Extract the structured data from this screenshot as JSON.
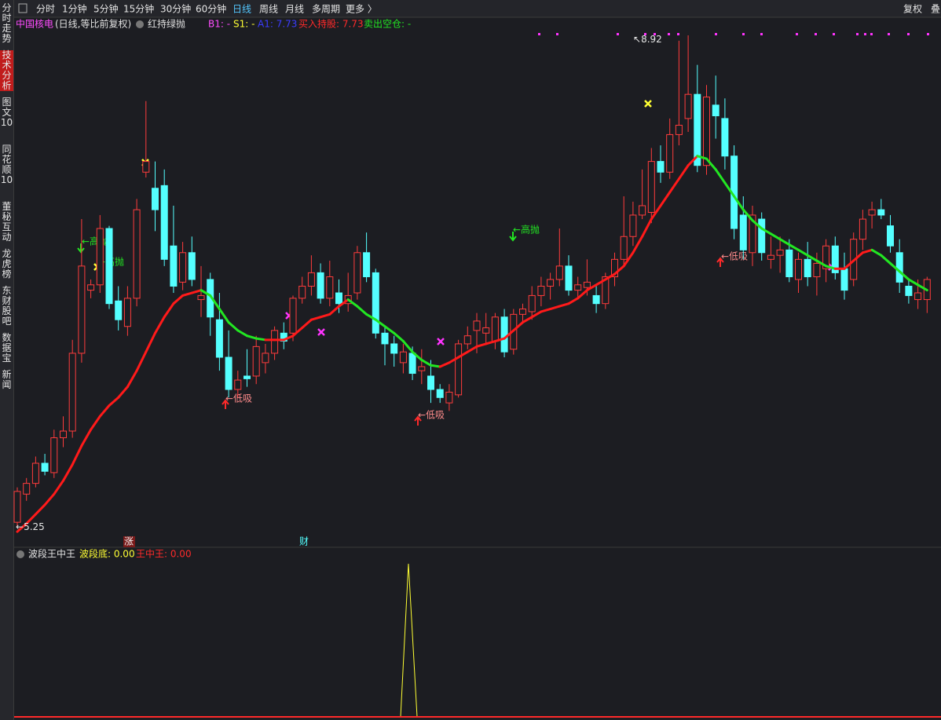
{
  "toolbar": {
    "periods": [
      "分时",
      "1分钟",
      "5分钟",
      "15分钟",
      "30分钟",
      "60分钟",
      "日线",
      "周线",
      "月线",
      "多周期",
      "更多 〉"
    ],
    "right": [
      "复权",
      "叠"
    ]
  },
  "sidebar": [
    "分时走势",
    "技术分析",
    "图文10",
    "同花顺10",
    "董秘互动",
    "龙虎榜",
    "东财股吧",
    "数据宝",
    "新闻"
  ],
  "chart_data": {
    "type": "candlestick",
    "title": "中国核电",
    "subtitle": "(日线,等比前复权)",
    "indicator": "红持绿抛",
    "legend": [
      "B1: -",
      "S1: -",
      "A1: 7.73",
      "买入持股: 7.73",
      "卖出空仓: -"
    ],
    "up_color": "#ff3c3c",
    "down_color": "#54ffff",
    "ma_up_color": "#ff1a1a",
    "ma_down_color": "#22e622",
    "max_label": 8.92,
    "min_label": 5.25,
    "signals": [
      "←高抛",
      "←高抛",
      "←低吸",
      "←低吸",
      "←高抛",
      "←低吸"
    ],
    "tags": [
      "涨",
      "财"
    ],
    "candles": [
      [
        5.29,
        5.55,
        5.25,
        5.52
      ],
      [
        5.5,
        5.62,
        5.45,
        5.58
      ],
      [
        5.58,
        5.78,
        5.55,
        5.73
      ],
      [
        5.73,
        5.8,
        5.64,
        5.67
      ],
      [
        5.66,
        5.98,
        5.62,
        5.92
      ],
      [
        5.92,
        6.08,
        5.85,
        5.97
      ],
      [
        5.97,
        6.65,
        5.92,
        6.55
      ],
      [
        6.55,
        7.55,
        6.48,
        7.2
      ],
      [
        7.02,
        7.1,
        6.96,
        7.06
      ],
      [
        7.06,
        7.58,
        7.0,
        7.48
      ],
      [
        7.48,
        7.5,
        6.88,
        6.92
      ],
      [
        6.94,
        7.05,
        6.72,
        6.8
      ],
      [
        6.75,
        7.05,
        6.68,
        6.96
      ],
      [
        6.96,
        7.7,
        6.9,
        7.62
      ],
      [
        7.9,
        8.43,
        7.86,
        7.98
      ],
      [
        7.78,
        7.98,
        7.46,
        7.62
      ],
      [
        7.8,
        7.92,
        7.2,
        7.25
      ],
      [
        7.35,
        7.65,
        7.0,
        7.05
      ],
      [
        7.08,
        7.38,
        7.02,
        7.3
      ],
      [
        7.3,
        7.42,
        7.05,
        7.1
      ],
      [
        6.95,
        7.2,
        6.82,
        6.98
      ],
      [
        7.1,
        7.15,
        6.68,
        6.82
      ],
      [
        6.8,
        7.0,
        6.42,
        6.52
      ],
      [
        6.52,
        6.72,
        6.22,
        6.28
      ],
      [
        6.28,
        6.42,
        6.22,
        6.35
      ],
      [
        6.38,
        6.58,
        6.3,
        6.36
      ],
      [
        6.38,
        6.68,
        6.32,
        6.6
      ],
      [
        6.48,
        6.62,
        6.4,
        6.55
      ],
      [
        6.55,
        6.75,
        6.5,
        6.72
      ],
      [
        6.7,
        6.78,
        6.58,
        6.64
      ],
      [
        6.7,
        6.98,
        6.64,
        6.96
      ],
      [
        6.96,
        7.12,
        6.92,
        7.05
      ],
      [
        7.05,
        7.28,
        6.98,
        7.15
      ],
      [
        7.15,
        7.22,
        6.92,
        6.96
      ],
      [
        6.96,
        7.24,
        6.9,
        7.12
      ],
      [
        7.0,
        7.1,
        6.85,
        6.92
      ],
      [
        6.92,
        7.15,
        6.86,
        6.98
      ],
      [
        7.0,
        7.35,
        6.95,
        7.3
      ],
      [
        7.3,
        7.45,
        7.08,
        7.12
      ],
      [
        7.15,
        7.18,
        6.66,
        6.7
      ],
      [
        6.7,
        6.74,
        6.46,
        6.62
      ],
      [
        6.62,
        6.68,
        6.45,
        6.55
      ],
      [
        6.48,
        6.62,
        6.4,
        6.56
      ],
      [
        6.55,
        6.6,
        6.35,
        6.4
      ],
      [
        6.42,
        6.58,
        6.32,
        6.45
      ],
      [
        6.38,
        6.5,
        6.18,
        6.28
      ],
      [
        6.28,
        6.32,
        6.18,
        6.22
      ],
      [
        6.18,
        6.32,
        6.12,
        6.26
      ],
      [
        6.24,
        6.65,
        6.22,
        6.62
      ],
      [
        6.62,
        6.75,
        6.58,
        6.68
      ],
      [
        6.72,
        6.85,
        6.55,
        6.79
      ],
      [
        6.7,
        6.85,
        6.62,
        6.74
      ],
      [
        6.64,
        6.85,
        6.58,
        6.82
      ],
      [
        6.82,
        6.88,
        6.52,
        6.56
      ],
      [
        6.58,
        6.88,
        6.54,
        6.84
      ],
      [
        6.84,
        6.92,
        6.78,
        6.88
      ],
      [
        6.86,
        7.05,
        6.8,
        6.98
      ],
      [
        6.98,
        7.12,
        6.9,
        7.05
      ],
      [
        7.05,
        7.15,
        6.95,
        7.1
      ],
      [
        7.1,
        7.48,
        7.05,
        7.2
      ],
      [
        7.2,
        7.28,
        6.98,
        7.02
      ],
      [
        7.02,
        7.12,
        6.96,
        7.06
      ],
      [
        7.04,
        7.25,
        6.98,
        7.08
      ],
      [
        6.98,
        7.05,
        6.85,
        6.92
      ],
      [
        6.92,
        7.15,
        6.88,
        7.12
      ],
      [
        7.12,
        7.3,
        7.05,
        7.25
      ],
      [
        7.25,
        7.72,
        7.2,
        7.42
      ],
      [
        7.42,
        7.68,
        7.35,
        7.58
      ],
      [
        7.58,
        7.92,
        7.55,
        7.65
      ],
      [
        7.6,
        8.08,
        7.52,
        7.98
      ],
      [
        7.98,
        8.1,
        7.82,
        7.9
      ],
      [
        7.9,
        8.3,
        7.85,
        8.18
      ],
      [
        8.18,
        8.88,
        8.1,
        8.25
      ],
      [
        8.3,
        8.92,
        8.2,
        8.48
      ],
      [
        8.48,
        8.7,
        7.9,
        7.95
      ],
      [
        7.95,
        8.55,
        7.88,
        8.46
      ],
      [
        8.4,
        8.62,
        8.15,
        8.32
      ],
      [
        8.3,
        8.45,
        7.92,
        8.02
      ],
      [
        8.02,
        8.1,
        7.4,
        7.48
      ],
      [
        7.58,
        7.72,
        7.25,
        7.32
      ],
      [
        7.3,
        7.65,
        7.2,
        7.58
      ],
      [
        7.55,
        7.6,
        7.24,
        7.3
      ],
      [
        7.25,
        7.42,
        7.18,
        7.28
      ],
      [
        7.28,
        7.42,
        7.15,
        7.32
      ],
      [
        7.32,
        7.4,
        7.08,
        7.12
      ],
      [
        7.1,
        7.3,
        7.0,
        7.25
      ],
      [
        7.25,
        7.38,
        7.05,
        7.12
      ],
      [
        7.12,
        7.3,
        6.98,
        7.22
      ],
      [
        7.18,
        7.4,
        7.08,
        7.35
      ],
      [
        7.35,
        7.42,
        7.1,
        7.15
      ],
      [
        7.18,
        7.3,
        6.95,
        7.02
      ],
      [
        7.1,
        7.45,
        7.05,
        7.4
      ],
      [
        7.4,
        7.62,
        7.32,
        7.55
      ],
      [
        7.58,
        7.68,
        7.48,
        7.62
      ],
      [
        7.62,
        7.7,
        7.55,
        7.58
      ],
      [
        7.5,
        7.58,
        7.3,
        7.35
      ],
      [
        7.3,
        7.4,
        7.0,
        7.08
      ],
      [
        7.05,
        7.1,
        6.92,
        6.98
      ],
      [
        6.95,
        7.1,
        6.88,
        7.0
      ],
      [
        6.95,
        7.12,
        6.85,
        7.1
      ]
    ],
    "ma": [
      5.22,
      5.28,
      5.35,
      5.42,
      5.5,
      5.6,
      5.72,
      5.86,
      5.98,
      6.08,
      6.16,
      6.22,
      6.3,
      6.42,
      6.56,
      6.7,
      6.82,
      6.92,
      6.98,
      7.0,
      7.02,
      6.98,
      6.88,
      6.78,
      6.72,
      6.68,
      6.66,
      6.65,
      6.65,
      6.65,
      6.68,
      6.74,
      6.8,
      6.82,
      6.84,
      6.9,
      6.95,
      6.9,
      6.84,
      6.8,
      6.75,
      6.7,
      6.64,
      6.56,
      6.5,
      6.46,
      6.45,
      6.48,
      6.52,
      6.56,
      6.6,
      6.62,
      6.64,
      6.66,
      6.72,
      6.78,
      6.82,
      6.86,
      6.88,
      6.9,
      6.92,
      6.96,
      7.02,
      7.06,
      7.1,
      7.14,
      7.2,
      7.3,
      7.42,
      7.55,
      7.65,
      7.75,
      7.85,
      7.95,
      8.02,
      8.0,
      7.92,
      7.82,
      7.72,
      7.62,
      7.54,
      7.48,
      7.44,
      7.4,
      7.36,
      7.32,
      7.28,
      7.24,
      7.2,
      7.18,
      7.18,
      7.24,
      7.3,
      7.32,
      7.28,
      7.22,
      7.16,
      7.1,
      7.06,
      7.02
    ]
  },
  "sub_chart": {
    "title": "波段王中王",
    "items": [
      "波段底: 0.00",
      "王中王: 0.00"
    ]
  }
}
